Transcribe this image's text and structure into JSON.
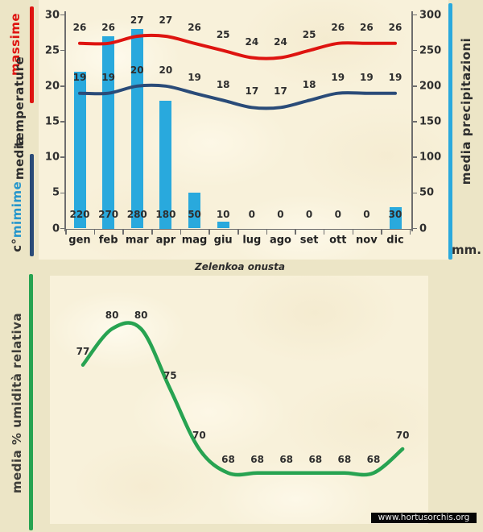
{
  "species_title": "Zelenkoa onusta",
  "watermark": "www.hortusorchis.org",
  "colors": {
    "page_bg": "#ece5c6",
    "panel_bg": "#f8f1da",
    "massime_red": "#de1410",
    "mimime_navy": "#2a4b78",
    "precipitation_cyan": "#29a9dd",
    "mimime_text_cyan": "#2596cc",
    "humidity_green": "#27a351",
    "text_dark": "#2e2e2e",
    "axis_gray": "#6e6e6e"
  },
  "top_chart": {
    "margin_labels": {
      "massime": "massime",
      "temperature": "temperature",
      "media": "media",
      "mimime": "mimime",
      "unit_left": "c°",
      "right_title": "media  precipitazioni",
      "unit_right": "mm."
    }
  },
  "bottom_chart": {
    "ylabel": "media %  umidità relativa"
  },
  "chart_data": [
    {
      "type": "bar",
      "title": "",
      "categories": [
        "gen",
        "feb",
        "mar",
        "apr",
        "mag",
        "giu",
        "lug",
        "ago",
        "set",
        "ott",
        "nov",
        "dic"
      ],
      "series": [
        {
          "name": "massime",
          "type": "line",
          "axis": "left",
          "color": "#de1410",
          "values": [
            26,
            26,
            27,
            27,
            26,
            25,
            24,
            24,
            25,
            26,
            26,
            26
          ]
        },
        {
          "name": "mimime",
          "type": "line",
          "axis": "left",
          "color": "#2a4b78",
          "values": [
            19,
            19,
            20,
            20,
            19,
            18,
            17,
            17,
            18,
            19,
            19,
            19
          ]
        },
        {
          "name": "media precipitazioni",
          "type": "bar",
          "axis": "right",
          "color": "#29a9dd",
          "values": [
            220,
            270,
            280,
            180,
            50,
            10,
            0,
            0,
            0,
            0,
            0,
            30
          ]
        }
      ],
      "left_axis": {
        "title": "massime temperature media mimime",
        "unit": "c°",
        "range": [
          0,
          30
        ],
        "ticks": [
          0,
          5,
          10,
          15,
          20,
          25,
          30
        ]
      },
      "right_axis": {
        "title": "media precipitazioni",
        "unit": "mm.",
        "range": [
          0,
          300
        ],
        "ticks": [
          0,
          50,
          100,
          150,
          200,
          250,
          300
        ]
      },
      "grid": false,
      "legend_position": "left-margin"
    },
    {
      "type": "line",
      "title": "Zelenkoa onusta",
      "categories": [
        "gen",
        "feb",
        "mar",
        "apr",
        "mag",
        "giu",
        "lug",
        "ago",
        "set",
        "ott",
        "nov",
        "dic"
      ],
      "series": [
        {
          "name": "media % umidità relativa",
          "type": "line",
          "color": "#27a351",
          "values": [
            77,
            80,
            80,
            75,
            70,
            68,
            68,
            68,
            68,
            68,
            68,
            70
          ]
        }
      ],
      "ylabel": "media % umidità relativa",
      "ylim": [
        60,
        85
      ],
      "grid": false,
      "axes_hidden": true
    }
  ]
}
